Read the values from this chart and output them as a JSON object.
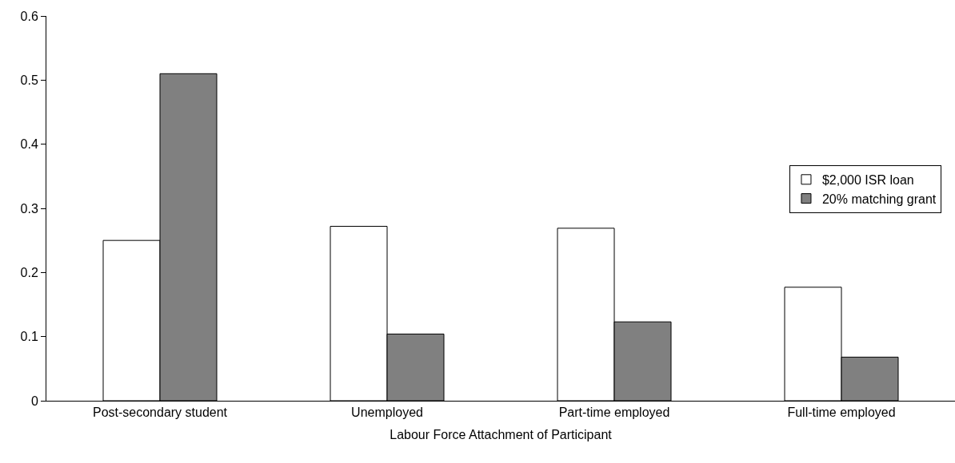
{
  "chart_data": {
    "type": "bar",
    "xlabel": "Labour Force Attachment of Participant",
    "categories": [
      "Post-secondary student",
      "Unemployed",
      "Part-time employed",
      "Full-time employed"
    ],
    "series": [
      {
        "name": "$2,000 ISR loan",
        "color": "#ffffff",
        "values": [
          0.25,
          0.272,
          0.269,
          0.177
        ]
      },
      {
        "name": "20% matching grant",
        "color": "#808080",
        "values": [
          0.51,
          0.104,
          0.123,
          0.068
        ]
      }
    ],
    "ylim": [
      0,
      0.6
    ],
    "yticks": [
      0,
      0.1,
      0.2,
      0.3,
      0.4,
      0.5,
      0.6
    ],
    "grid": false,
    "legend": "right"
  }
}
